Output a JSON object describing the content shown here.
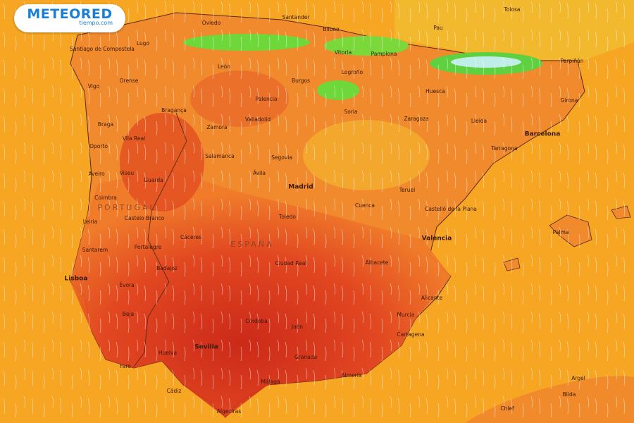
{
  "logo": {
    "brand": "METEORED",
    "site": "tiempo.com"
  },
  "countries": [
    "PORTUGAL",
    "ESPAÑA"
  ],
  "cities": [
    "Santander",
    "Oviedo",
    "Bilbao",
    "Lugo",
    "Santiago de Compostela",
    "Vitoria",
    "Pamplona",
    "León",
    "Orense",
    "Burgos",
    "Logroño",
    "Vigo",
    "Huesca",
    "Palencia",
    "Soria",
    "Girona",
    "Bragança",
    "Valladolid",
    "Zaragoza",
    "Lleida",
    "Barcelona",
    "Braga",
    "Zamora",
    "Vila Real",
    "Oporto",
    "Tarragona",
    "Salamanca",
    "Segovia",
    "Aveiro",
    "Viseu",
    "Ávila",
    "Guarda",
    "Madrid",
    "Teruel",
    "Coimbra",
    "Cuenca",
    "Castelló de la Plana",
    "Castelo Branco",
    "Toledo",
    "Leiria",
    "Cáceres",
    "Valencia",
    "Santarem",
    "Portalegre",
    "Ciudad Real",
    "Albacete",
    "Badajoz",
    "Lisboa",
    "Évora",
    "Alicante",
    "Beja",
    "Murcia",
    "Córdoba",
    "Jaén",
    "Cartagena",
    "Huelva",
    "Sevilla",
    "Granada",
    "Faro",
    "Almería",
    "Málaga",
    "Cádiz",
    "Algeciras",
    "Tolosa",
    "Pau",
    "Perpiñán",
    "Palma",
    "Argel",
    "Blida",
    "Chlef"
  ]
}
